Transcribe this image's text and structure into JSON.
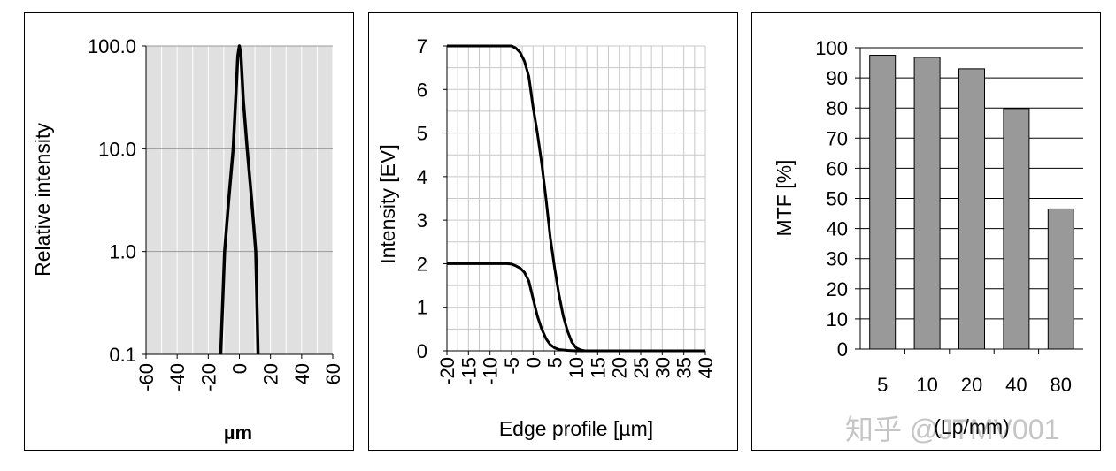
{
  "chart_data": [
    {
      "type": "line",
      "title": "",
      "xlabel": "µm",
      "ylabel": "Relative intensity",
      "yscale": "log",
      "xlim": [
        -60,
        60
      ],
      "ylim": [
        0.1,
        100.0
      ],
      "xticks": [
        "-60",
        "-40",
        "-20",
        "0",
        "20",
        "40",
        "60"
      ],
      "yticks": [
        "0.1",
        "1.0",
        "10.0",
        "100.0"
      ],
      "background": "#e0e0e0",
      "grid": true,
      "series": [
        {
          "x": [
            -12,
            -9.5,
            -7,
            -4,
            -2,
            -1,
            0,
            1,
            2.5,
            5,
            8,
            10.5,
            12
          ],
          "y": [
            0.1,
            1.0,
            3.0,
            10.0,
            40.0,
            80.0,
            100.0,
            80.0,
            30.0,
            10.0,
            3.0,
            1.0,
            0.1
          ]
        }
      ]
    },
    {
      "type": "line",
      "title": "",
      "xlabel": "Edge profile [µm]",
      "ylabel": "Intensity [EV]",
      "xlim": [
        -20,
        40
      ],
      "ylim": [
        0,
        7
      ],
      "xticks": [
        "-20",
        "-15",
        "-10",
        "-5",
        "0",
        "5",
        "10",
        "15",
        "20",
        "25",
        "30",
        "35",
        "40"
      ],
      "yticks": [
        "0",
        "1",
        "2",
        "3",
        "4",
        "5",
        "6",
        "7"
      ],
      "grid": true,
      "series": [
        {
          "x": [
            -20,
            -10,
            -5,
            -4,
            -3,
            -2,
            -1,
            0,
            1,
            2,
            3,
            4,
            5,
            6,
            7,
            8,
            9,
            10,
            11,
            12,
            15,
            20,
            40
          ],
          "y": [
            7,
            7,
            7,
            6.95,
            6.85,
            6.65,
            6.3,
            5.6,
            5.0,
            4.3,
            3.5,
            2.6,
            1.9,
            1.3,
            0.8,
            0.45,
            0.2,
            0.07,
            0.02,
            0,
            0,
            0,
            0
          ]
        },
        {
          "x": [
            -20,
            -10,
            -6,
            -5,
            -4,
            -3,
            -2,
            -1,
            0,
            1,
            2,
            3,
            4,
            5,
            6,
            8,
            10,
            20,
            40
          ],
          "y": [
            2,
            2,
            2,
            1.99,
            1.95,
            1.9,
            1.8,
            1.6,
            1.2,
            0.8,
            0.5,
            0.28,
            0.14,
            0.07,
            0.03,
            0.01,
            0,
            0,
            0
          ]
        }
      ]
    },
    {
      "type": "bar",
      "title": "",
      "xlabel": "(Lp/mm)",
      "ylabel": "MTF [%]",
      "ylim": [
        0,
        100
      ],
      "yticks": [
        "0",
        "10",
        "20",
        "30",
        "40",
        "50",
        "60",
        "70",
        "80",
        "90",
        "100"
      ],
      "categories": [
        "5",
        "10",
        "20",
        "40",
        "80"
      ],
      "values": [
        97.5,
        96.8,
        93.0,
        79.8,
        46.5
      ],
      "bar_color": "#999999",
      "grid": true
    }
  ],
  "watermark": "知乎 @JTMV001"
}
